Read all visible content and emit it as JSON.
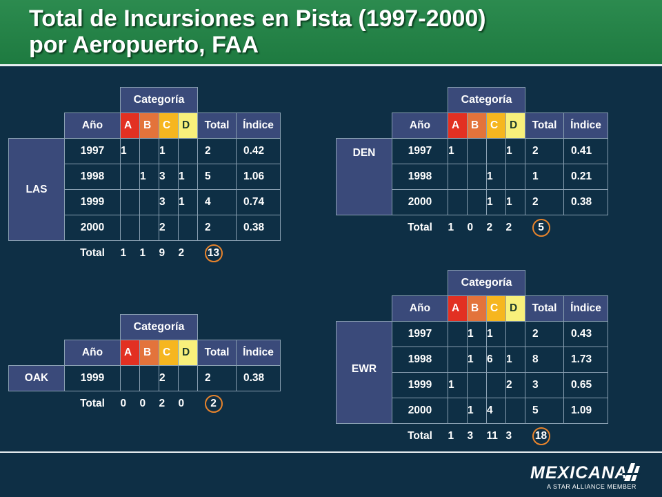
{
  "title_line1": "Total de Incursiones en Pista (1997-2000)",
  "title_line2": "por Aeropuerto, FAA",
  "category_label": "Categoría",
  "columns": {
    "year": "Año",
    "a": "A",
    "b": "B",
    "c": "C",
    "d": "D",
    "total": "Total",
    "index": "Índice"
  },
  "total_label": "Total",
  "colors": {
    "A": "#e23022",
    "B": "#e3733b",
    "C": "#f6b61f",
    "D": "#f8f07b",
    "header": "#3a4a7a",
    "background": "#0e2f45",
    "title_bar": "#1e7a40"
  },
  "airports": {
    "las": {
      "name": "LAS",
      "rows": [
        {
          "year": "1997",
          "a": "1",
          "b": "",
          "c": "1",
          "d": "",
          "total": "2",
          "index": "0.42"
        },
        {
          "year": "1998",
          "a": "",
          "b": "1",
          "c": "3",
          "d": "1",
          "total": "5",
          "index": "1.06"
        },
        {
          "year": "1999",
          "a": "",
          "b": "",
          "c": "3",
          "d": "1",
          "total": "4",
          "index": "0.74"
        },
        {
          "year": "2000",
          "a": "",
          "b": "",
          "c": "2",
          "d": "",
          "total": "2",
          "index": "0.38"
        }
      ],
      "totals": {
        "a": "1",
        "b": "1",
        "c": "9",
        "d": "2",
        "total": "13"
      }
    },
    "den": {
      "name": "DEN",
      "rows": [
        {
          "year": "1997",
          "a": "1",
          "b": "",
          "c": "",
          "d": "1",
          "total": "2",
          "index": "0.41"
        },
        {
          "year": "1998",
          "a": "",
          "b": "",
          "c": "1",
          "d": "",
          "total": "1",
          "index": "0.21"
        },
        {
          "year": "2000",
          "a": "",
          "b": "",
          "c": "1",
          "d": "1",
          "total": "2",
          "index": "0.38"
        }
      ],
      "totals": {
        "a": "1",
        "b": "0",
        "c": "2",
        "d": "2",
        "total": "5"
      }
    },
    "oak": {
      "name": "OAK",
      "rows": [
        {
          "year": "1999",
          "a": "",
          "b": "",
          "c": "2",
          "d": "",
          "total": "2",
          "index": "0.38"
        }
      ],
      "totals": {
        "a": "0",
        "b": "0",
        "c": "2",
        "d": "0",
        "total": "2"
      }
    },
    "ewr": {
      "name": "EWR",
      "rows": [
        {
          "year": "1997",
          "a": "",
          "b": "1",
          "c": "1",
          "d": "",
          "total": "2",
          "index": "0.43"
        },
        {
          "year": "1998",
          "a": "",
          "b": "1",
          "c": "6",
          "d": "1",
          "total": "8",
          "index": "1.73"
        },
        {
          "year": "1999",
          "a": "1",
          "b": "",
          "c": "",
          "d": "2",
          "total": "3",
          "index": "0.65"
        },
        {
          "year": "2000",
          "a": "",
          "b": "1",
          "c": "4",
          "d": "",
          "total": "5",
          "index": "1.09"
        }
      ],
      "totals": {
        "a": "1",
        "b": "3",
        "c": "11",
        "d": "3",
        "total": "18"
      }
    }
  },
  "logo": {
    "name": "MEXICANA",
    "tagline": "A STAR ALLIANCE MEMBER"
  }
}
